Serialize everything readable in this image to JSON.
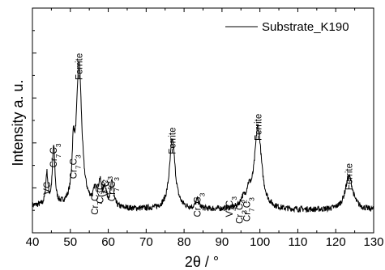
{
  "chart_data": {
    "type": "line",
    "title": "",
    "xlabel": "2θ / °",
    "ylabel": "Intensity a. u.",
    "xlim": [
      40,
      130
    ],
    "ylim": [
      0,
      100
    ],
    "x_ticks": [
      40,
      50,
      60,
      70,
      80,
      90,
      100,
      110,
      120,
      130
    ],
    "x_tick_labels": [
      "40",
      "50",
      "60",
      "70",
      "80",
      "90",
      "100",
      "110",
      "120",
      "130"
    ],
    "y_tick_labels": [],
    "legend": {
      "position": "top-right",
      "line_color": "#000000"
    },
    "series": [
      {
        "name": "Substrate_K190",
        "color": "#000000"
      }
    ],
    "peaks": [
      {
        "x": 43.8,
        "h": 14,
        "w": 0.35
      },
      {
        "x": 45.6,
        "h": 26,
        "w": 0.4
      },
      {
        "x": 50.8,
        "h": 20,
        "w": 0.4
      },
      {
        "x": 52.3,
        "h": 64,
        "w": 0.85
      },
      {
        "x": 56.5,
        "h": 6,
        "w": 0.5
      },
      {
        "x": 57.8,
        "h": 10,
        "w": 0.5
      },
      {
        "x": 59.1,
        "h": 8,
        "w": 0.5
      },
      {
        "x": 61.0,
        "h": 11,
        "w": 0.5
      },
      {
        "x": 76.9,
        "h": 31,
        "w": 0.9
      },
      {
        "x": 83.5,
        "h": 4,
        "w": 0.5
      },
      {
        "x": 95.5,
        "h": 3,
        "w": 0.7
      },
      {
        "x": 97.0,
        "h": 6,
        "w": 0.7
      },
      {
        "x": 99.5,
        "h": 37,
        "w": 1.1
      },
      {
        "x": 123.5,
        "h": 15,
        "w": 1.2
      }
    ],
    "annotations": [
      {
        "label": "Ferrite",
        "x": 52.3,
        "y": 68
      },
      {
        "label": "Ferrite",
        "x": 76.9,
        "y": 35
      },
      {
        "label": "Ferrite",
        "x": 99.5,
        "y": 41
      },
      {
        "label": "Ferrite",
        "x": 123.5,
        "y": 19
      },
      {
        "label": "VC",
        "x": 43.8,
        "y": 17
      },
      {
        "label": "Cr7C3",
        "x": 45.6,
        "y": 29
      },
      {
        "label": "Cr7C3",
        "x": 50.8,
        "y": 24
      },
      {
        "label": "Cr7C3",
        "x": 56.5,
        "y": 8
      },
      {
        "label": "Cr3C2",
        "x": 57.9,
        "y": 13
      },
      {
        "label": "V4C3",
        "x": 59.2,
        "y": 16
      },
      {
        "label": "Cr7C3",
        "x": 61.0,
        "y": 14
      },
      {
        "label": "Cr7C3",
        "x": 83.5,
        "y": 7
      },
      {
        "label": "V4C3",
        "x": 92.0,
        "y": 7
      },
      {
        "label": "Cr3C2",
        "x": 94.6,
        "y": 4
      },
      {
        "label": "Cr7C3",
        "x": 96.5,
        "y": 5
      }
    ]
  }
}
